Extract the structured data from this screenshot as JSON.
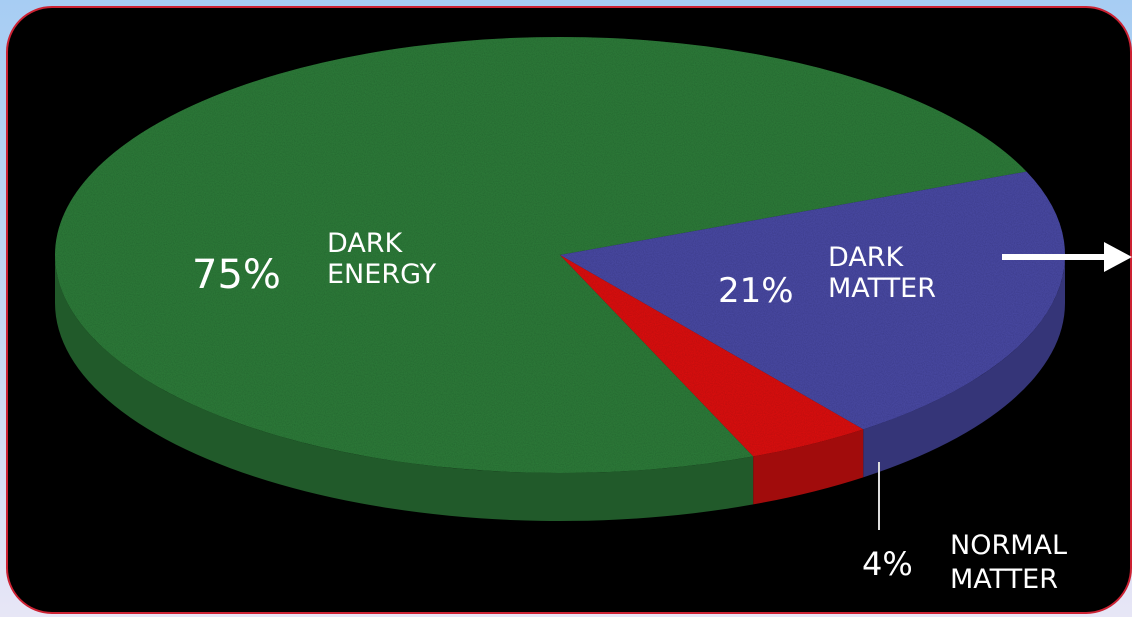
{
  "colors": {
    "page_background": "#b9d3f2",
    "panel_background": "#000000",
    "panel_border": "#cc2233",
    "dark_energy": "#2e7d3a",
    "dark_matter": "#4a4aa6",
    "normal_matter": "#e01010"
  },
  "chart_data": {
    "type": "pie",
    "title": "",
    "slices": [
      {
        "percent_label": "75%",
        "name_line1": "DARK",
        "name_line2": "ENERGY",
        "value": 75,
        "color": "#2e7d3a"
      },
      {
        "percent_label": "21%",
        "name_line1": "DARK",
        "name_line2": "MATTER",
        "value": 21,
        "color": "#4a4aa6"
      },
      {
        "percent_label": "4%",
        "name_line1": "NORMAL",
        "name_line2": "MATTER",
        "value": 4,
        "color": "#e01010"
      }
    ],
    "annotation": {
      "type": "arrow",
      "target": "dark-matter-slice",
      "icon": "arrow-right-icon"
    }
  }
}
